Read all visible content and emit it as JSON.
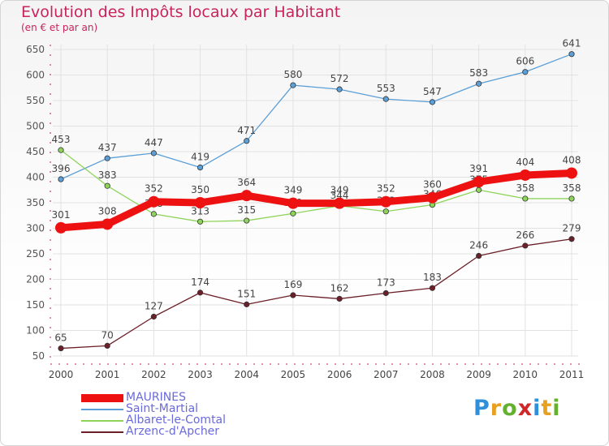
{
  "title": "Evolution des Impôts locaux par Habitant",
  "subtitle": "(en € et par an)",
  "logo": [
    "P",
    "r",
    "o",
    "x",
    "i",
    "t",
    "i"
  ],
  "logo_colors": [
    "#2f8fd8",
    "#e8a020",
    "#66b030",
    "#d02828",
    "#2f8fd8",
    "#e8a020",
    "#66b030"
  ],
  "chart_data": {
    "type": "line",
    "title": "Evolution des Impôts locaux par Habitant",
    "subtitle": "(en € et par an)",
    "x": [
      "2000",
      "2001",
      "2002",
      "2003",
      "2004",
      "2005",
      "2006",
      "2007",
      "2008",
      "2009",
      "2010",
      "2011"
    ],
    "ylim": [
      50,
      650
    ],
    "yticks": [
      50,
      100,
      150,
      200,
      250,
      300,
      350,
      400,
      450,
      500,
      550,
      600,
      650
    ],
    "grid": true,
    "legend_position": "bottom-left",
    "series": [
      {
        "name": "Saint-Martial",
        "color": "#5b9fd6",
        "emphasis": false,
        "values": [
          396,
          437,
          447,
          419,
          471,
          580,
          572,
          553,
          547,
          583,
          606,
          641
        ]
      },
      {
        "name": "Albaret-le-Comtal",
        "color": "#8fd45a",
        "emphasis": false,
        "values": [
          453,
          383,
          328,
          313,
          315,
          329,
          344,
          333,
          346,
          375,
          358,
          358
        ]
      },
      {
        "name": "Arzenc-d'Apcher",
        "color": "#6b1f28",
        "emphasis": false,
        "values": [
          65,
          70,
          127,
          174,
          151,
          169,
          162,
          173,
          183,
          246,
          266,
          279
        ]
      },
      {
        "name": "MAURINES",
        "color": "#ee1111",
        "emphasis": true,
        "values": [
          301,
          308,
          352,
          350,
          364,
          349,
          349,
          352,
          360,
          391,
          404,
          408
        ]
      }
    ],
    "legend_order": [
      "MAURINES",
      "Saint-Martial",
      "Albaret-le-Comtal",
      "Arzenc-d'Apcher"
    ]
  }
}
